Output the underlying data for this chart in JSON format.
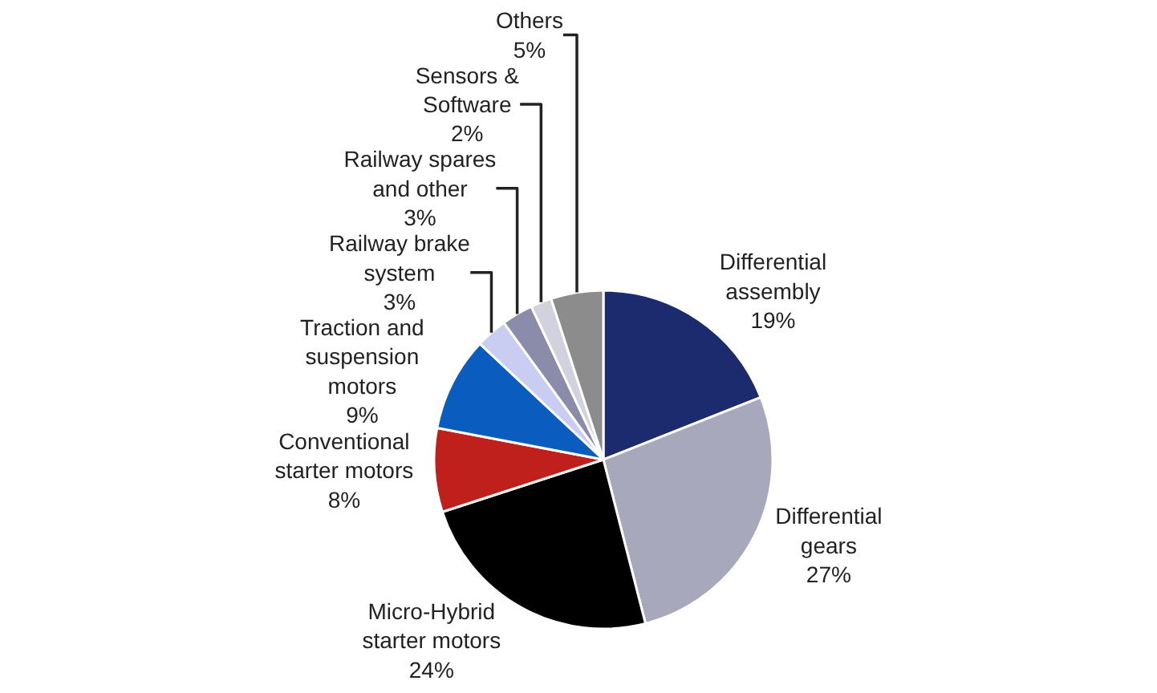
{
  "chart_data": {
    "type": "pie",
    "categories": [
      "Differential assembly",
      "Differential gears",
      "Micro-Hybrid starter motors",
      "Conventional starter motors",
      "Traction and suspension motors",
      "Railway brake system",
      "Railway spares and other",
      "Sensors & Software",
      "Others"
    ],
    "values": [
      19,
      27,
      24,
      8,
      9,
      3,
      3,
      2,
      5
    ],
    "value_labels": [
      "19%",
      "27%",
      "24%",
      "8%",
      "9%",
      "3%",
      "3%",
      "2%",
      "5%"
    ],
    "colors": [
      "#1c2a6e",
      "#a8a8bc",
      "#000000",
      "#c0201c",
      "#0a5cbe",
      "#c9cdf2",
      "#8a8caa",
      "#d2d2de",
      "#8c8c8c"
    ],
    "legend": false
  }
}
